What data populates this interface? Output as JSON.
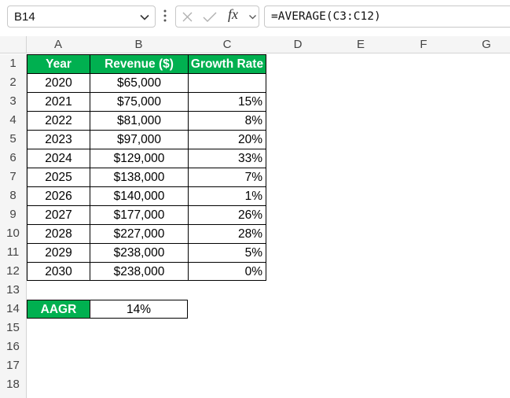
{
  "formula_bar": {
    "name_box": "B14",
    "fx_label": "fx",
    "formula": "=AVERAGE(C3:C12)"
  },
  "columns": [
    "A",
    "B",
    "C",
    "D",
    "E",
    "F",
    "G"
  ],
  "rows": [
    "1",
    "2",
    "3",
    "4",
    "5",
    "6",
    "7",
    "8",
    "9",
    "10",
    "11",
    "12",
    "13",
    "14",
    "15",
    "16",
    "17",
    "18"
  ],
  "table": {
    "headers": [
      "Year",
      "Revenue ($)",
      "Growth Rate"
    ],
    "rows": [
      {
        "year": "2020",
        "revenue": "$65,000",
        "growth": ""
      },
      {
        "year": "2021",
        "revenue": "$75,000",
        "growth": "15%"
      },
      {
        "year": "2022",
        "revenue": "$81,000",
        "growth": "8%"
      },
      {
        "year": "2023",
        "revenue": "$97,000",
        "growth": "20%"
      },
      {
        "year": "2024",
        "revenue": "$129,000",
        "growth": "33%"
      },
      {
        "year": "2025",
        "revenue": "$138,000",
        "growth": "7%"
      },
      {
        "year": "2026",
        "revenue": "$140,000",
        "growth": "1%"
      },
      {
        "year": "2027",
        "revenue": "$177,000",
        "growth": "26%"
      },
      {
        "year": "2028",
        "revenue": "$227,000",
        "growth": "28%"
      },
      {
        "year": "2029",
        "revenue": "$238,000",
        "growth": "5%"
      },
      {
        "year": "2030",
        "revenue": "$238,000",
        "growth": "0%"
      }
    ]
  },
  "summary": {
    "label": "AAGR",
    "value": "14%"
  },
  "colors": {
    "header_green": "#00b050",
    "header_text": "#ffffff",
    "grid_header_bg": "#f5f5f5"
  }
}
